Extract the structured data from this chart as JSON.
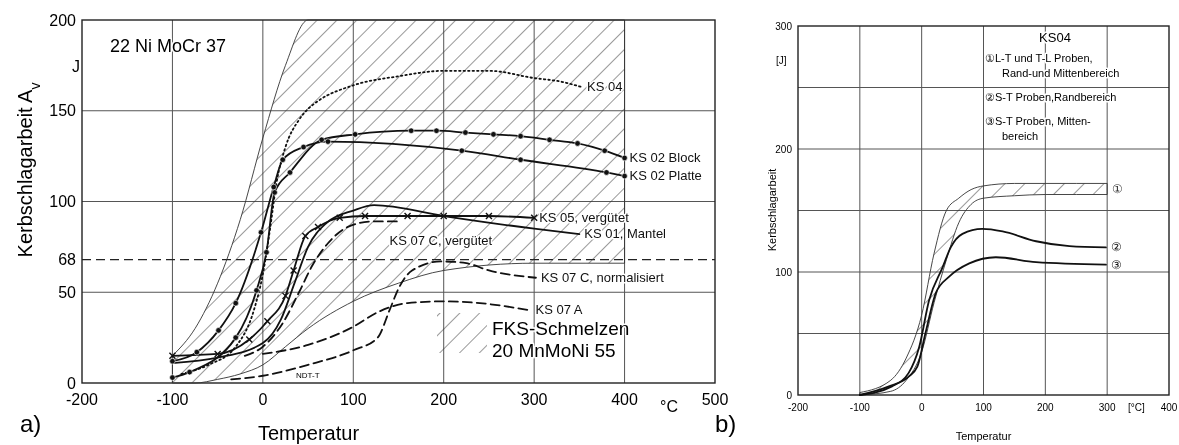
{
  "chart_data": [
    {
      "type": "line",
      "xlabel": "Temperatur",
      "ylabel": "Kerbschlagarbeit A$_{v}$",
      "xlim": [
        -200,
        500
      ],
      "ylim": [
        0,
        200
      ],
      "xticks": [
        -200,
        -100,
        0,
        100,
        200,
        300,
        400,
        500
      ],
      "yticks": [
        0,
        50,
        68,
        100,
        150,
        200
      ],
      "grid": true,
      "legend": "bottom right",
      "ref_lines": [
        {
          "axis": "y",
          "value": 68,
          "line_style": "dashed",
          "color": "#222222"
        }
      ],
      "annotations": [
        "a)",
        "22 Ni MoCr 37",
        "J",
        "°C",
        "NDT-T"
      ],
      "series": [
        {
          "name": "FKS-Schmelzen 20 MnMoNi 55",
          "color": "#333333",
          "x": [
            -100,
            -75,
            -50,
            -25,
            0,
            25,
            50,
            100,
            150,
            200,
            300,
            400
          ],
          "values": [
            null,
            null,
            null,
            null,
            null,
            null,
            null,
            null,
            null,
            null,
            null,
            null
          ],
          "upper": [
            15,
            30,
            55,
            90,
            135,
            175,
            200,
            200,
            200,
            200,
            200,
            200
          ],
          "lower": [
            0,
            0,
            2,
            5,
            10,
            20,
            30,
            45,
            55,
            62,
            66,
            66
          ]
        },
        {
          "name": "KS 04",
          "color": "#111111",
          "line_style": "dotted",
          "marker": "none",
          "x": [
            -90,
            -60,
            -30,
            -10,
            0,
            8,
            15,
            25,
            40,
            50,
            60,
            100,
            150,
            200,
            250,
            300,
            330,
            353
          ],
          "values": [
            5,
            10,
            20,
            40,
            60,
            85,
            110,
            130,
            145,
            151,
            155,
            164,
            169,
            172,
            172,
            168,
            166,
            163
          ]
        },
        {
          "name": "KS 02 Block",
          "color": "#111111",
          "line_style": "solid",
          "marker": "circle",
          "x": [
            -100,
            -81,
            -30,
            -7,
            4,
            13,
            30,
            65,
            102,
            164,
            192,
            224,
            255,
            285,
            317,
            348,
            378,
            400
          ],
          "values": [
            3,
            6,
            25,
            51,
            72,
            105,
            116,
            134,
            137,
            139,
            139,
            138,
            137,
            136,
            134,
            132,
            128,
            124
          ]
        },
        {
          "name": "KS 02 Platte",
          "color": "#111111",
          "line_style": "solid",
          "marker": "circle",
          "x": [
            -100,
            -73,
            -49,
            -30,
            -2,
            12,
            22,
            45,
            72,
            220,
            285,
            380,
            400
          ],
          "values": [
            12,
            17,
            29,
            44,
            83,
            108,
            123,
            130,
            133,
            128,
            123,
            116,
            114
          ]
        },
        {
          "name": "KS 05, vergütet",
          "color": "#111111",
          "line_style": "solid",
          "marker": "cross",
          "x": [
            -100,
            -50,
            -15,
            5,
            25,
            34,
            47,
            61,
            85,
            113,
            160,
            200,
            250,
            300
          ],
          "values": [
            15,
            16,
            24,
            34,
            48,
            62,
            81,
            86,
            91,
            92,
            92,
            92,
            92,
            91
          ]
        },
        {
          "name": "KS 01, Mantel",
          "color": "#111111",
          "line_style": "solid",
          "marker": "none",
          "x": [
            -100,
            -50,
            0,
            20,
            35,
            50,
            70,
            100,
            123,
            200,
            300,
            350
          ],
          "values": [
            11,
            14,
            22,
            35,
            55,
            75,
            88,
            95,
            98,
            92,
            85,
            82
          ]
        },
        {
          "name": "KS 07 C, vergütet",
          "color": "#111111",
          "line_style": "dashed",
          "marker": "none",
          "x": [
            -20,
            0,
            22,
            40,
            55,
            72,
            94,
            120,
            150
          ],
          "values": [
            15,
            20,
            33,
            50,
            65,
            77,
            86,
            89,
            89
          ]
        },
        {
          "name": "KS 07 C, normalisiert",
          "color": "#111111",
          "line_style": "dashed",
          "marker": "none",
          "x": [
            -35,
            0,
            50,
            100,
            127,
            140,
            150,
            165,
            197,
            225,
            250,
            302
          ],
          "values": [
            2,
            4,
            10,
            18,
            25,
            40,
            52,
            62,
            67,
            66,
            62,
            58
          ]
        },
        {
          "name": "KS 07 A",
          "color": "#111111",
          "line_style": "dashed",
          "marker": "none",
          "x": [
            0,
            50,
            100,
            127,
            160,
            200,
            240,
            296
          ],
          "values": [
            16,
            21,
            31,
            39,
            44,
            45,
            44,
            40
          ]
        }
      ]
    },
    {
      "type": "line",
      "xlabel": "Temperatur",
      "ylabel": "Kerbschlagarbeit",
      "xlim": [
        -200,
        400
      ],
      "ylim": [
        0,
        300
      ],
      "xticks": [
        -200,
        -100,
        0,
        100,
        200,
        300,
        400
      ],
      "yticks": [
        0,
        {
          "value": 50,
          "label": null
        },
        100,
        {
          "value": 150,
          "label": null
        },
        200,
        {
          "value": 250,
          "label": null
        },
        300
      ],
      "grid": true,
      "legend": false,
      "annotations": [
        "b)",
        "[J]",
        "[°C]",
        "KS04",
        "①L-T und T-L Proben,",
        "Rand-und Mittenbereich",
        "②S-T Proben,Randbereich",
        "③S-T Proben, Mitten-",
        "bereich"
      ],
      "series": [
        {
          "name": "①",
          "color": "#333333",
          "x": [
            -100,
            -50,
            -25,
            0,
            20,
            40,
            60,
            80,
            100,
            150,
            200,
            250,
            300
          ],
          "values": [
            null,
            null,
            null,
            null,
            null,
            null,
            null,
            null,
            null,
            null,
            null,
            null,
            null
          ],
          "upper": [
            2,
            12,
            30,
            65,
            115,
            150,
            160,
            167,
            170,
            172,
            172,
            172,
            172
          ],
          "lower": [
            0,
            3,
            12,
            35,
            75,
            110,
            140,
            155,
            160,
            162,
            163,
            163,
            163
          ]
        },
        {
          "name": "②",
          "color": "#111111",
          "line_style": "solid",
          "marker": "none",
          "x": [
            -100,
            -48,
            -21,
            -4,
            12,
            34,
            47,
            66,
            98,
            131,
            185,
            239,
            298
          ],
          "values": [
            0,
            7,
            18,
            39,
            77,
            104,
            120,
            131,
            135,
            133,
            125,
            121,
            120
          ]
        },
        {
          "name": "③",
          "color": "#111111",
          "line_style": "solid",
          "marker": "none",
          "x": [
            -100,
            -53,
            -21,
            -7,
            6,
            23,
            44,
            77,
            120,
            185,
            298
          ],
          "values": [
            0,
            7,
            15,
            23,
            50,
            83,
            96,
            107,
            112,
            108,
            106
          ]
        }
      ]
    }
  ]
}
